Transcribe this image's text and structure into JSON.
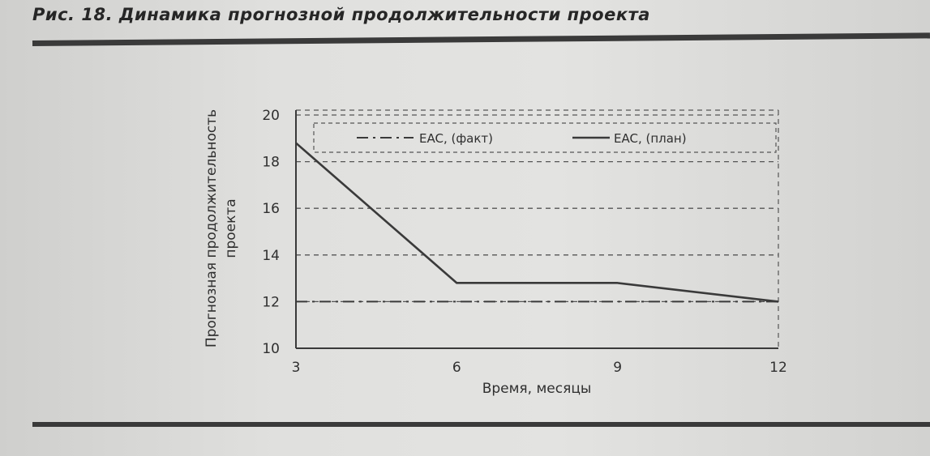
{
  "figure": {
    "title": "Рис. 18. Динамика прогнозной продолжительности проекта"
  },
  "chart_data": {
    "type": "line",
    "xlabel": "Время, месяцы",
    "ylabel_lines": [
      "Прогнозная продолжительность",
      "проекта"
    ],
    "x": [
      3,
      6,
      9,
      12
    ],
    "xlim": [
      3,
      12
    ],
    "ylim": [
      10,
      20
    ],
    "yticks": [
      10,
      12,
      14,
      16,
      18,
      20
    ],
    "xticks": [
      3,
      6,
      9,
      12
    ],
    "grid": "horizontal dashed",
    "legend_position": "top",
    "series": [
      {
        "name": "EAC, (факт)",
        "style": "dash-dot",
        "values": [
          12,
          12,
          12,
          12
        ]
      },
      {
        "name": "EAC, (план)",
        "style": "solid",
        "values": [
          18.8,
          12.8,
          12.8,
          12.0
        ]
      }
    ]
  },
  "colors": {
    "ink": "#3a3a3a",
    "grid": "#555555"
  }
}
